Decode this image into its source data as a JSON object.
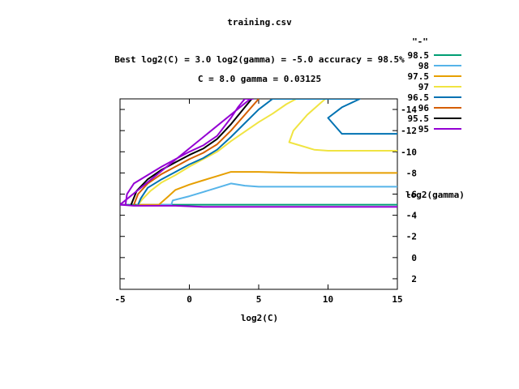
{
  "chart_data": {
    "type": "line",
    "title": "training.csv",
    "subtitle_1": "Best log2(C) = 3.0  log2(gamma) = -5.0  accuracy = 98.5%",
    "subtitle_2": "C = 8.0  gamma = 0.03125",
    "xlabel": "log2(C)",
    "ylabel": "log2(gamma)",
    "xlim": [
      -5,
      15
    ],
    "ylim": [
      3,
      -15
    ],
    "x_ticks": [
      -5,
      0,
      5,
      10,
      15
    ],
    "x_tick_labels": [
      "-5",
      "0",
      "5",
      "10",
      "15"
    ],
    "y_ticks": [
      -14,
      -12,
      -10,
      -8,
      -6,
      -4,
      -2,
      0,
      2
    ],
    "y_tick_labels": [
      "-14",
      "-12",
      "-10",
      "-8",
      "-6",
      "-4",
      "-2",
      "0",
      "2"
    ],
    "grid": false,
    "legend_title": "\"-\"",
    "legend_placement": "top-right, outside plot",
    "series": [
      {
        "name": "98.5",
        "color": "#009e73",
        "points": [
          [
            -5,
            -5.0
          ],
          [
            15,
            -5.0
          ]
        ]
      },
      {
        "name": "98",
        "color": "#56b4e9",
        "points": [
          [
            -3.8,
            -5.0
          ],
          [
            -1.3,
            -5.0
          ],
          [
            -1.2,
            -5.4
          ],
          [
            0,
            -5.8
          ],
          [
            1,
            -6.2
          ],
          [
            2,
            -6.6
          ],
          [
            3,
            -7.0
          ],
          [
            4,
            -6.8
          ],
          [
            5,
            -6.7
          ],
          [
            7,
            -6.7
          ],
          [
            10,
            -6.7
          ],
          [
            15,
            -6.7
          ]
        ]
      },
      {
        "name": "97.5",
        "color": "#e69f00",
        "points": [
          [
            -3.8,
            -5.0
          ],
          [
            -2.2,
            -5.0
          ],
          [
            -1.5,
            -5.8
          ],
          [
            -1,
            -6.4
          ],
          [
            0,
            -6.9
          ],
          [
            1,
            -7.3
          ],
          [
            2,
            -7.7
          ],
          [
            3,
            -8.1
          ],
          [
            5,
            -8.1
          ],
          [
            8,
            -8.0
          ],
          [
            10,
            -8.0
          ],
          [
            15,
            -8.0
          ]
        ]
      },
      {
        "name": "97",
        "color": "#f0e442",
        "points": [
          [
            -3.7,
            -5.0
          ],
          [
            -3.4,
            -5.5
          ],
          [
            -2.8,
            -6.3
          ],
          [
            -2,
            -7.1
          ],
          [
            -1,
            -7.8
          ],
          [
            0,
            -8.6
          ],
          [
            1,
            -9.3
          ],
          [
            2,
            -10.0
          ],
          [
            3,
            -11.0
          ],
          [
            5,
            -12.8
          ],
          [
            6,
            -13.6
          ],
          [
            7,
            -14.5
          ],
          [
            7.7,
            -15.0
          ],
          [
            9.8,
            -15.0
          ],
          [
            8.5,
            -13.5
          ],
          [
            7.5,
            -12.0
          ],
          [
            7.2,
            -10.9
          ],
          [
            9,
            -10.2
          ],
          [
            10,
            -10.1
          ],
          [
            15,
            -10.1
          ]
        ]
      },
      {
        "name": "96.5",
        "color": "#0072b2",
        "points": [
          [
            -3.7,
            -5.0
          ],
          [
            -3.5,
            -5.6
          ],
          [
            -3,
            -6.6
          ],
          [
            -2,
            -7.4
          ],
          [
            -1,
            -8.1
          ],
          [
            0,
            -8.8
          ],
          [
            1,
            -9.4
          ],
          [
            2,
            -10.2
          ],
          [
            3,
            -11.4
          ],
          [
            4,
            -12.7
          ],
          [
            5,
            -14.0
          ],
          [
            6,
            -15.0
          ],
          [
            12.3,
            -15.0
          ],
          [
            11,
            -14.2
          ],
          [
            10,
            -13.2
          ],
          [
            11,
            -11.7
          ],
          [
            15,
            -11.7
          ]
        ]
      },
      {
        "name": "96",
        "color": "#d55e00",
        "points": [
          [
            -4.0,
            -5.0
          ],
          [
            -3.7,
            -6.0
          ],
          [
            -3,
            -7.0
          ],
          [
            -2,
            -7.9
          ],
          [
            -1,
            -8.6
          ],
          [
            0,
            -9.3
          ],
          [
            1,
            -9.9
          ],
          [
            2,
            -10.7
          ],
          [
            3,
            -12.0
          ],
          [
            4,
            -13.5
          ],
          [
            5,
            -15.0
          ]
        ]
      },
      {
        "name": "95.5",
        "color": "#000000",
        "points": [
          [
            -4.2,
            -5.0
          ],
          [
            -3.8,
            -6.3
          ],
          [
            -3,
            -7.4
          ],
          [
            -2,
            -8.3
          ],
          [
            -1,
            -9.0
          ],
          [
            0,
            -9.7
          ],
          [
            1,
            -10.3
          ],
          [
            2,
            -11.2
          ],
          [
            3,
            -12.6
          ],
          [
            4,
            -14.2
          ],
          [
            4.5,
            -15.0
          ]
        ]
      },
      {
        "name": "95",
        "color": "#9400d3",
        "points": [
          [
            -5,
            -5.0
          ],
          [
            -4.6,
            -5.0
          ],
          [
            -4.5,
            -6.0
          ],
          [
            -4,
            -7.0
          ],
          [
            -3,
            -7.8
          ],
          [
            -2,
            -8.6
          ],
          [
            -1,
            -9.3
          ],
          [
            0,
            -10.0
          ],
          [
            1,
            -10.6
          ],
          [
            2,
            -11.5
          ],
          [
            3,
            -13.2
          ],
          [
            3.5,
            -14.2
          ],
          [
            4,
            -15.0
          ],
          [
            4.5,
            -15.0
          ],
          [
            4.6,
            -15.0
          ],
          [
            4.4,
            -15.0
          ],
          [
            -5,
            -5.0
          ],
          [
            -4,
            -4.9
          ],
          [
            -1,
            -4.9
          ],
          [
            1,
            -4.8
          ],
          [
            15,
            -4.8
          ]
        ]
      }
    ]
  }
}
